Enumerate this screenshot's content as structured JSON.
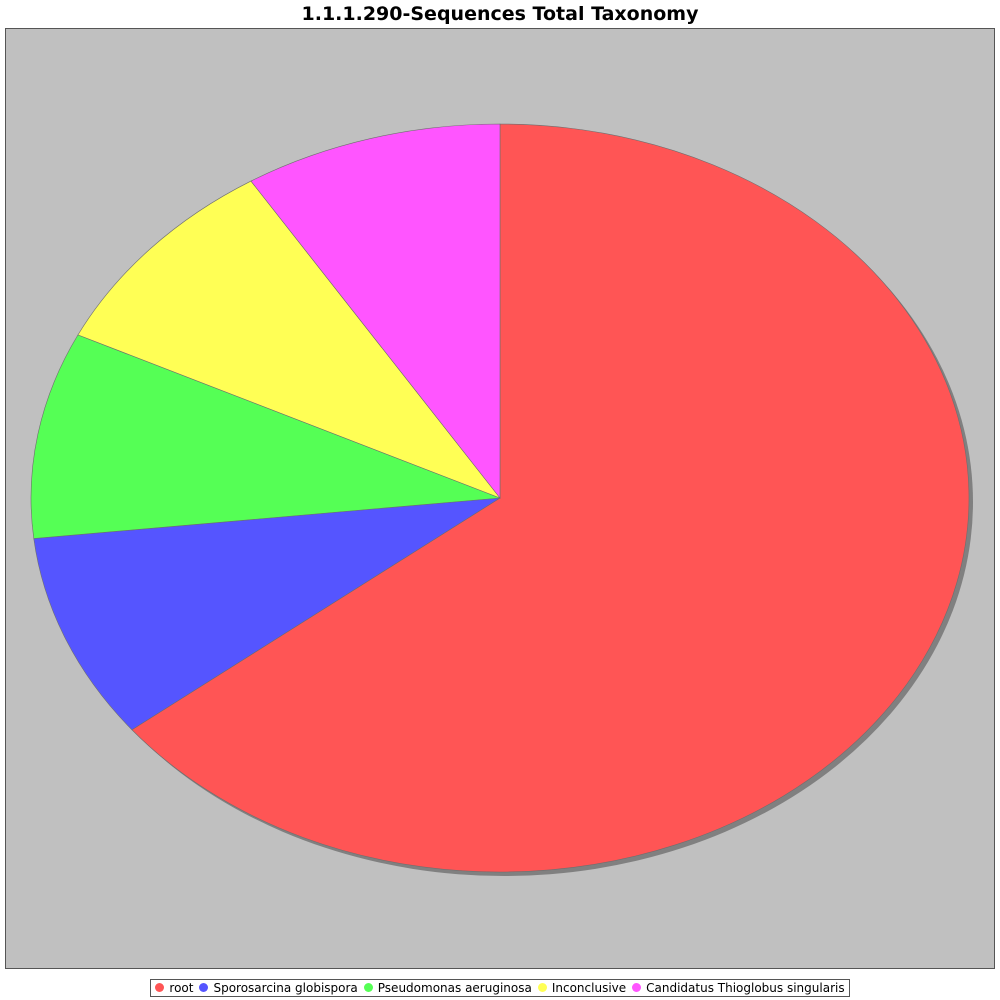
{
  "chart_data": {
    "type": "pie",
    "title": "1.1.1.290-Sequences Total Taxonomy",
    "start_angle_deg": 90,
    "direction": "clockwise",
    "legend_position": "bottom",
    "background_color": "#c0c0c0",
    "slices": [
      {
        "name": "root",
        "value": 64.3,
        "color": "#ff5555"
      },
      {
        "name": "Sporosarcina globispora",
        "value": 8.9,
        "color": "#5555ff"
      },
      {
        "name": "Pseudomonas aeruginosa",
        "value": 8.9,
        "color": "#55ff55"
      },
      {
        "name": "Inconclusive",
        "value": 8.9,
        "color": "#ffff55"
      },
      {
        "name": "Candidatus Thioglobus singularis",
        "value": 8.9,
        "color": "#ff55ff"
      }
    ]
  }
}
